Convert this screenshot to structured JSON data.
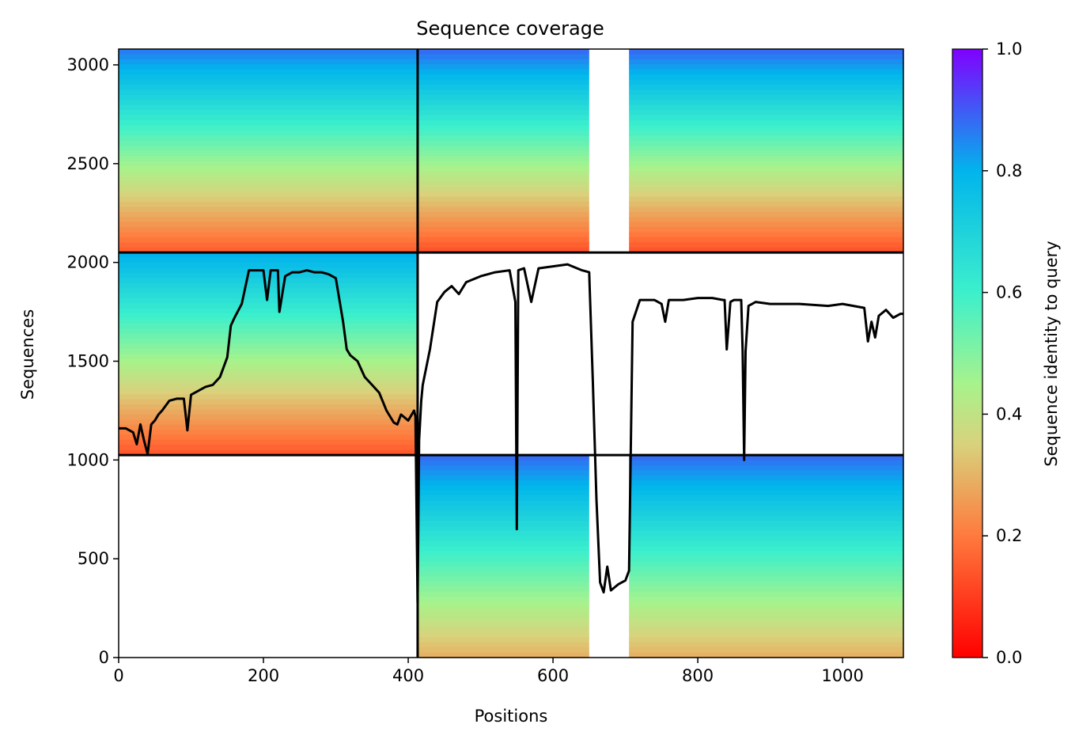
{
  "chart_data": {
    "type": "heatmap",
    "title": "Sequence coverage",
    "xlabel": "Positions",
    "ylabel": "Sequences",
    "xlim": [
      0,
      1084
    ],
    "ylim": [
      0,
      3080
    ],
    "xticks": [
      0,
      200,
      400,
      600,
      800,
      1000
    ],
    "yticks": [
      0,
      500,
      1000,
      1500,
      2000,
      2500,
      3000
    ],
    "colorbar": {
      "label": "Sequence identity to query",
      "range": [
        0,
        1
      ],
      "ticks": [
        0.0,
        0.2,
        0.4,
        0.6,
        0.8,
        1.0
      ],
      "tick_labels": [
        "0.0",
        "0.2",
        "0.4",
        "0.6",
        "0.8",
        "1.0"
      ],
      "colormap": "rainbow_r"
    },
    "blocks": [
      {
        "x": [
          0,
          413
        ],
        "y": [
          2050,
          3080
        ],
        "identity_top": 0.86,
        "identity_bottom": 0.14,
        "coverage_x": [
          0,
          413
        ]
      },
      {
        "x": [
          413,
          1084
        ],
        "y": [
          2050,
          3080
        ],
        "identity_top": 0.88,
        "identity_bottom": 0.12,
        "gap_x": [
          650,
          705
        ]
      },
      {
        "x": [
          0,
          413
        ],
        "y": [
          1025,
          2050
        ],
        "identity_top": 0.8,
        "identity_bottom": 0.13
      },
      {
        "x": [
          413,
          1084
        ],
        "y": [
          0,
          1025
        ],
        "identity_top": 0.88,
        "identity_bottom": 0.28,
        "gap_x": [
          650,
          705
        ]
      }
    ],
    "block_separators": {
      "x": [
        413
      ],
      "y": [
        1025,
        2050
      ]
    },
    "coverage_line": {
      "x": [
        0,
        10,
        20,
        25,
        30,
        35,
        40,
        45,
        50,
        55,
        60,
        70,
        80,
        90,
        95,
        100,
        120,
        130,
        140,
        150,
        155,
        160,
        170,
        180,
        190,
        200,
        205,
        210,
        220,
        222,
        230,
        240,
        250,
        260,
        270,
        280,
        290,
        300,
        310,
        315,
        320,
        330,
        340,
        350,
        360,
        370,
        380,
        385,
        390,
        400,
        408,
        410,
        413,
        415,
        418,
        420,
        430,
        440,
        450,
        460,
        470,
        480,
        500,
        520,
        540,
        548,
        550,
        552,
        560,
        570,
        580,
        600,
        620,
        640,
        650,
        655,
        660,
        665,
        670,
        675,
        680,
        690,
        700,
        705,
        710,
        720,
        740,
        750,
        755,
        760,
        780,
        800,
        820,
        835,
        837,
        840,
        845,
        850,
        860,
        862,
        864,
        866,
        870,
        880,
        900,
        940,
        980,
        1000,
        1030,
        1035,
        1040,
        1045,
        1050,
        1060,
        1070,
        1080,
        1084
      ],
      "y": [
        1160,
        1160,
        1140,
        1080,
        1180,
        1100,
        1030,
        1180,
        1200,
        1230,
        1250,
        1300,
        1310,
        1310,
        1150,
        1330,
        1370,
        1380,
        1420,
        1520,
        1680,
        1720,
        1790,
        1960,
        1960,
        1960,
        1810,
        1960,
        1960,
        1750,
        1930,
        1950,
        1950,
        1960,
        1950,
        1950,
        1940,
        1920,
        1700,
        1560,
        1530,
        1500,
        1420,
        1380,
        1340,
        1250,
        1190,
        1180,
        1230,
        1200,
        1250,
        1220,
        280,
        1100,
        1300,
        1380,
        1560,
        1800,
        1850,
        1880,
        1840,
        1900,
        1930,
        1950,
        1960,
        1800,
        650,
        1960,
        1970,
        1800,
        1970,
        1980,
        1990,
        1960,
        1950,
        1400,
        800,
        380,
        330,
        460,
        340,
        370,
        390,
        440,
        1700,
        1810,
        1810,
        1790,
        1700,
        1810,
        1810,
        1820,
        1820,
        1810,
        1810,
        1560,
        1800,
        1810,
        1810,
        1550,
        1000,
        1550,
        1780,
        1800,
        1790,
        1790,
        1780,
        1790,
        1770,
        1600,
        1700,
        1620,
        1730,
        1760,
        1720,
        1740,
        1740
      ]
    }
  }
}
